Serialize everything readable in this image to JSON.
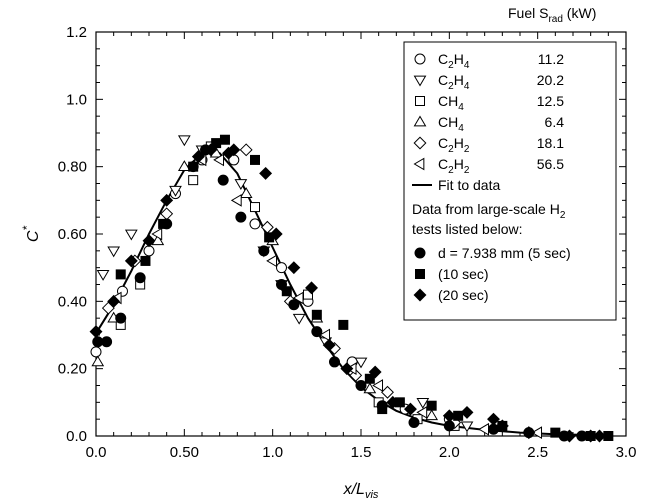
{
  "chart_data": {
    "type": "scatter",
    "xlabel": "x/L",
    "xlabel_sub": "vis",
    "ylabel": "C",
    "ylabel_sup": "*",
    "xlim": [
      0,
      3.0
    ],
    "ylim": [
      0,
      1.2
    ],
    "xticks": [
      "0.0",
      "0.50",
      "1.0",
      "1.5",
      "2.0",
      "2.5",
      "3.0"
    ],
    "yticks": [
      "0.0",
      "0.20",
      "0.40",
      "0.60",
      "0.80",
      "1.0",
      "1.2"
    ],
    "grid": false,
    "legend_position": "top-right",
    "legend_header": {
      "fuel": "Fuel S",
      "sub": "rad",
      "unit": " (kW)"
    },
    "legend_note": {
      "line1": "Data from large-scale H",
      "line1_sub": "2",
      "line2": "tests listed below:"
    },
    "series": [
      {
        "fuel": "C",
        "fuel_sub1": "2",
        "fuel_mid": "H",
        "fuel_sub2": "4",
        "value": "11.2",
        "marker": "circle-open",
        "points": [
          [
            0.0,
            0.25
          ],
          [
            0.15,
            0.43
          ],
          [
            0.3,
            0.55
          ],
          [
            0.45,
            0.72
          ],
          [
            0.6,
            0.82
          ],
          [
            0.78,
            0.82
          ],
          [
            0.9,
            0.63
          ],
          [
            1.05,
            0.5
          ],
          [
            1.2,
            0.4
          ],
          [
            1.45,
            0.22
          ],
          [
            1.75,
            0.08
          ],
          [
            2.0,
            0.05
          ]
        ]
      },
      {
        "fuel": "C",
        "fuel_sub1": "2",
        "fuel_mid": "H",
        "fuel_sub2": "4",
        "value": "20.2",
        "marker": "triangle-down-open",
        "points": [
          [
            0.04,
            0.48
          ],
          [
            0.1,
            0.55
          ],
          [
            0.2,
            0.6
          ],
          [
            0.45,
            0.73
          ],
          [
            0.5,
            0.88
          ],
          [
            0.6,
            0.85
          ],
          [
            0.82,
            0.75
          ],
          [
            0.95,
            0.55
          ],
          [
            1.05,
            0.45
          ],
          [
            1.15,
            0.35
          ],
          [
            1.3,
            0.28
          ],
          [
            1.5,
            0.22
          ],
          [
            1.85,
            0.1
          ],
          [
            2.1,
            0.03
          ]
        ]
      },
      {
        "fuel": "CH",
        "fuel_sub1": "4",
        "fuel_mid": "",
        "fuel_sub2": "",
        "value": "12.5",
        "marker": "square-open",
        "points": [
          [
            0.14,
            0.33
          ],
          [
            0.25,
            0.45
          ],
          [
            0.55,
            0.76
          ],
          [
            0.65,
            0.86
          ],
          [
            0.9,
            0.68
          ],
          [
            1.2,
            0.42
          ],
          [
            1.6,
            0.1
          ],
          [
            1.82,
            0.05
          ],
          [
            2.03,
            0.03
          ]
        ]
      },
      {
        "fuel": "CH",
        "fuel_sub1": "4",
        "fuel_mid": "",
        "fuel_sub2": "",
        "value": "6.4",
        "marker": "triangle-up-open",
        "points": [
          [
            0.01,
            0.22
          ],
          [
            0.1,
            0.35
          ],
          [
            0.35,
            0.58
          ],
          [
            0.5,
            0.8
          ],
          [
            0.68,
            0.84
          ],
          [
            0.85,
            0.72
          ],
          [
            1.0,
            0.58
          ],
          [
            1.25,
            0.35
          ],
          [
            1.55,
            0.14
          ],
          [
            1.9,
            0.06
          ]
        ]
      },
      {
        "fuel": "C",
        "fuel_sub1": "2",
        "fuel_mid": "H",
        "fuel_sub2": "2",
        "value": "18.1",
        "marker": "diamond-open",
        "points": [
          [
            0.07,
            0.38
          ],
          [
            0.22,
            0.52
          ],
          [
            0.4,
            0.66
          ],
          [
            0.58,
            0.83
          ],
          [
            0.85,
            0.85
          ],
          [
            0.97,
            0.62
          ],
          [
            1.1,
            0.4
          ],
          [
            1.35,
            0.26
          ],
          [
            1.47,
            0.18
          ],
          [
            1.65,
            0.13
          ],
          [
            2.03,
            0.04
          ],
          [
            2.3,
            0.03
          ]
        ]
      },
      {
        "fuel": "C",
        "fuel_sub1": "2",
        "fuel_mid": "H",
        "fuel_sub2": "2",
        "value": "56.5",
        "marker": "triangle-left-open",
        "points": [
          [
            0.12,
            0.41
          ],
          [
            0.35,
            0.6
          ],
          [
            0.6,
            0.82
          ],
          [
            0.7,
            0.82
          ],
          [
            0.8,
            0.7
          ],
          [
            1.0,
            0.52
          ],
          [
            1.15,
            0.41
          ],
          [
            1.3,
            0.3
          ],
          [
            1.45,
            0.2
          ],
          [
            1.6,
            0.15
          ],
          [
            1.85,
            0.07
          ],
          [
            2.2,
            0.02
          ],
          [
            2.5,
            0.01
          ]
        ]
      },
      {
        "fuel": "d = 7.938 mm (5 sec)",
        "marker": "circle-filled",
        "points": [
          [
            0.01,
            0.28
          ],
          [
            0.06,
            0.28
          ],
          [
            0.14,
            0.35
          ],
          [
            0.25,
            0.47
          ],
          [
            0.4,
            0.63
          ],
          [
            0.55,
            0.8
          ],
          [
            0.62,
            0.85
          ],
          [
            0.72,
            0.76
          ],
          [
            0.82,
            0.65
          ],
          [
            0.95,
            0.55
          ],
          [
            1.05,
            0.45
          ],
          [
            1.12,
            0.39
          ],
          [
            1.25,
            0.31
          ],
          [
            1.35,
            0.22
          ],
          [
            1.5,
            0.15
          ],
          [
            1.62,
            0.09
          ],
          [
            1.8,
            0.04
          ],
          [
            2.0,
            0.03
          ],
          [
            2.25,
            0.02
          ],
          [
            2.45,
            0.01
          ],
          [
            2.65,
            0.0
          ],
          [
            2.75,
            0.0
          ]
        ]
      },
      {
        "fuel": "(10 sec)",
        "marker": "square-filled",
        "points": [
          [
            0.14,
            0.48
          ],
          [
            0.28,
            0.52
          ],
          [
            0.38,
            0.63
          ],
          [
            0.55,
            0.8
          ],
          [
            0.68,
            0.87
          ],
          [
            0.73,
            0.88
          ],
          [
            0.9,
            0.82
          ],
          [
            0.98,
            0.59
          ],
          [
            1.08,
            0.43
          ],
          [
            1.25,
            0.36
          ],
          [
            1.4,
            0.33
          ],
          [
            1.55,
            0.17
          ],
          [
            1.62,
            0.08
          ],
          [
            1.72,
            0.1
          ],
          [
            1.9,
            0.09
          ],
          [
            2.05,
            0.06
          ],
          [
            2.3,
            0.03
          ],
          [
            2.6,
            0.01
          ],
          [
            2.8,
            0.0
          ],
          [
            2.9,
            0.0
          ]
        ]
      },
      {
        "fuel": "(20 sec)",
        "marker": "diamond-filled",
        "points": [
          [
            0.0,
            0.31
          ],
          [
            0.1,
            0.4
          ],
          [
            0.2,
            0.52
          ],
          [
            0.3,
            0.58
          ],
          [
            0.4,
            0.7
          ],
          [
            0.58,
            0.83
          ],
          [
            0.65,
            0.85
          ],
          [
            0.75,
            0.84
          ],
          [
            0.78,
            0.85
          ],
          [
            0.96,
            0.78
          ],
          [
            1.02,
            0.6
          ],
          [
            1.12,
            0.5
          ],
          [
            1.22,
            0.44
          ],
          [
            1.32,
            0.27
          ],
          [
            1.42,
            0.2
          ],
          [
            1.58,
            0.19
          ],
          [
            1.68,
            0.1
          ],
          [
            1.78,
            0.08
          ],
          [
            2.0,
            0.06
          ],
          [
            2.1,
            0.07
          ],
          [
            2.25,
            0.05
          ],
          [
            2.45,
            0.01
          ],
          [
            2.68,
            0.0
          ],
          [
            2.8,
            0.0
          ],
          [
            2.85,
            0.0
          ]
        ]
      }
    ],
    "fit": {
      "name": "Fit to data",
      "x": [
        0.0,
        0.1,
        0.2,
        0.3,
        0.4,
        0.5,
        0.6,
        0.65,
        0.7,
        0.8,
        0.9,
        1.0,
        1.1,
        1.2,
        1.3,
        1.4,
        1.5,
        1.6,
        1.7,
        1.8,
        1.9,
        2.0,
        2.2,
        2.4,
        2.6,
        2.8,
        2.9
      ],
      "y": [
        0.305,
        0.39,
        0.49,
        0.6,
        0.7,
        0.79,
        0.84,
        0.85,
        0.84,
        0.78,
        0.67,
        0.56,
        0.45,
        0.35,
        0.27,
        0.2,
        0.145,
        0.105,
        0.075,
        0.055,
        0.04,
        0.03,
        0.018,
        0.01,
        0.005,
        0.003,
        0.002
      ]
    }
  }
}
